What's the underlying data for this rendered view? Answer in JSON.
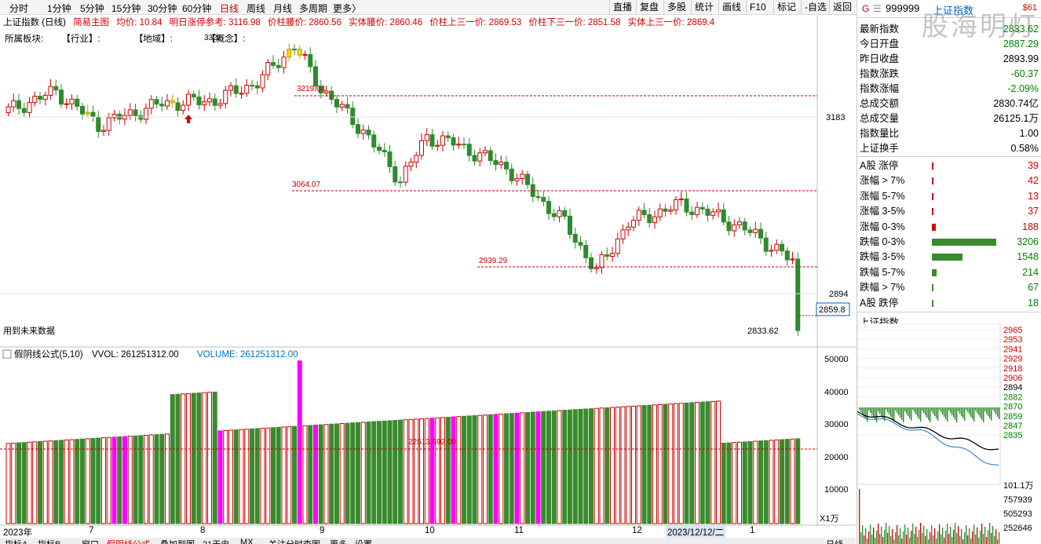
{
  "toolbar": {
    "periods": [
      "分时",
      "1分钟",
      "5分钟",
      "15分钟",
      "30分钟",
      "60分钟",
      "日线",
      "周线",
      "月线",
      "多周期",
      "更多〉"
    ],
    "active_period": "日线",
    "tools": [
      "直播",
      "复盘",
      "多股",
      "统计",
      "画线",
      "F10",
      "标记",
      "-自选",
      "返回"
    ]
  },
  "info": {
    "title": "上证指数 (日线)",
    "template": "简易主图",
    "avg": "均价: 10.84",
    "limit_ref": "明日涨停参考: 3116.98",
    "waist": "价柱腰价: 2860.56",
    "body_waist": "实体腰价: 2860.46",
    "upper_third": "价柱上三一价: 2869.53",
    "lower_third": "价柱下三一价: 2851.58",
    "body_upper_third": "实体上三一价: 2869.4"
  },
  "sector": {
    "label": "所属板块:",
    "industry": "【行业】:",
    "region": "【地域】:",
    "concept": "【概念】:"
  },
  "chart_labels": {
    "future_data": "用到未来数据",
    "peak_label": "3322.",
    "high_1": "3219.04",
    "low_1": "3064.07",
    "low_2": "2939.29",
    "last_low": "2833.62",
    "current_price_box": "2859.8",
    "y_ticks": [
      "3183",
      "2894"
    ],
    "vol_mid_label": "22513.892.00"
  },
  "volume_info": {
    "formula": "假阴线公式(5,10)",
    "vvol": "VVOL: 261251312.00",
    "volume": "VOLUME: 261251312.00",
    "y_ticks": [
      "50000",
      "40000",
      "30000",
      "20000",
      "10000"
    ],
    "unit": "X1万"
  },
  "date_axis": {
    "labels": [
      "2023年",
      "7",
      "8",
      "9",
      "10",
      "11",
      "12",
      "2023/12/12/二",
      "1"
    ]
  },
  "bottom_tabs": [
    "指标A",
    "指标B",
    "窗口",
    "假阴线公式",
    "叠加到图",
    "21天史",
    "MX",
    "关注分时查图",
    "更多",
    "设置",
    "日线"
  ],
  "right_panel": {
    "code": "999999",
    "name": "上证指数",
    "badge": "$61",
    "watermark": "股海明灯",
    "quote": [
      {
        "label": "最新指数",
        "value": "2833.62",
        "color": "green"
      },
      {
        "label": "今日开盘",
        "value": "2887.29",
        "color": "green"
      },
      {
        "label": "昨日收盘",
        "value": "2893.99",
        "color": "black"
      },
      {
        "label": "指数涨跌",
        "value": "-60.37",
        "color": "green"
      },
      {
        "label": "指数涨幅",
        "value": "-2.09%",
        "color": "green"
      },
      {
        "label": "总成交额",
        "value": "2830.74亿",
        "color": "black"
      },
      {
        "label": "总成交量",
        "value": "26125.1万",
        "color": "black"
      },
      {
        "label": "指数量比",
        "value": "1.00",
        "color": "black"
      },
      {
        "label": "上证换手",
        "value": "0.58%",
        "color": "black"
      }
    ],
    "breadth": [
      {
        "label": "A股 涨停",
        "value": "39",
        "color": "red",
        "level": 0.0
      },
      {
        "label": "涨幅 > 7%",
        "value": "42",
        "color": "red",
        "level": 0.0
      },
      {
        "label": "涨幅 5-7%",
        "value": "13",
        "color": "red",
        "level": 0.0
      },
      {
        "label": "涨幅 3-5%",
        "value": "37",
        "color": "red",
        "level": 0.0
      },
      {
        "label": "涨幅 0-3%",
        "value": "188",
        "color": "red",
        "level": 0.06
      },
      {
        "label": "跌幅 0-3%",
        "value": "3206",
        "color": "green",
        "level": 1.0
      },
      {
        "label": "跌幅 3-5%",
        "value": "1548",
        "color": "green",
        "level": 0.48
      },
      {
        "label": "跌幅 5-7%",
        "value": "214",
        "color": "green",
        "level": 0.07
      },
      {
        "label": "跌幅 > 7%",
        "value": "67",
        "color": "green",
        "level": 0.0
      },
      {
        "label": "A股 跌停",
        "value": "18",
        "color": "green",
        "level": 0.0
      }
    ],
    "mini_title": "上证指数",
    "mini_price_ticks": [
      "2965",
      "2953",
      "2941",
      "2929",
      "2918",
      "2906",
      "2894",
      "2882",
      "2870",
      "2859",
      "2847",
      "2835"
    ],
    "mini_vol_ticks": [
      "101.1万",
      "757939",
      "505293",
      "252646"
    ]
  },
  "colors": {
    "up": "#d00000",
    "down": "#2e8b2e",
    "accent_magenta": "#ff00ff",
    "yellow": "#ffd700"
  }
}
